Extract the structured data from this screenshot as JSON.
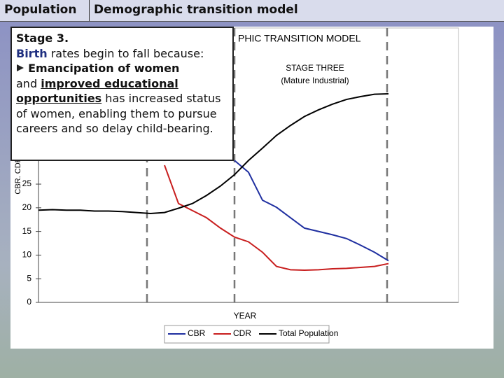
{
  "header": {
    "section": "Population",
    "title": "Demographic transition model"
  },
  "textbox": {
    "title": "Stage 3.",
    "lead_word": "Birth",
    "lead_rest": "rates begin to fall because:",
    "bullet_bold": "Emancipation of women",
    "and": "and",
    "underlined": "improved educational opportunities",
    "rest": "has increased status of women, enabling them to pursue careers and so delay child-bearing."
  },
  "chart_data": {
    "type": "line",
    "title": "PHIC TRANSITION MODEL",
    "stage_label": "STAGE THREE",
    "stage_sublabel": "(Mature Industrial)",
    "x_label": "YEAR",
    "y_label": "CBR. CDR RATE P",
    "categories": [
      null,
      null,
      null,
      null,
      null,
      null,
      null,
      null,
      null,
      null,
      null,
      null,
      null,
      null,
      null,
      null,
      null,
      null,
      null,
      null,
      null,
      null,
      null,
      null,
      null,
      null
    ],
    "ylim": [
      0,
      58
    ],
    "yticks": [
      0,
      5,
      10,
      15,
      20,
      25
    ],
    "series": [
      {
        "name": "CBR",
        "color": "#1f2fa0",
        "values": [
          null,
          null,
          null,
          null,
          null,
          null,
          null,
          null,
          null,
          null,
          null,
          null,
          null,
          null,
          30,
          27.5,
          21.6,
          20.1,
          17.9,
          15.7,
          15,
          14.3,
          13.5,
          12.1,
          10.6,
          8.8
        ]
      },
      {
        "name": "CDR",
        "color": "#c81e1e",
        "values": [
          null,
          null,
          null,
          null,
          null,
          null,
          null,
          null,
          null,
          29,
          20.9,
          19.4,
          17.9,
          15.7,
          13.8,
          12.8,
          10.6,
          7.6,
          6.9,
          6.8,
          6.9,
          7.1,
          7.2,
          7.4,
          7.6,
          8.2
        ]
      },
      {
        "name": "Total Population",
        "color": "#000000",
        "values": [
          19.5,
          19.6,
          19.5,
          19.5,
          19.3,
          19.3,
          19.2,
          19,
          18.8,
          19,
          19.9,
          20.9,
          22.6,
          24.6,
          27,
          30,
          32.6,
          35.3,
          37.4,
          39.3,
          40.7,
          41.9,
          42.9,
          43.5,
          44,
          44.1
        ]
      }
    ]
  }
}
